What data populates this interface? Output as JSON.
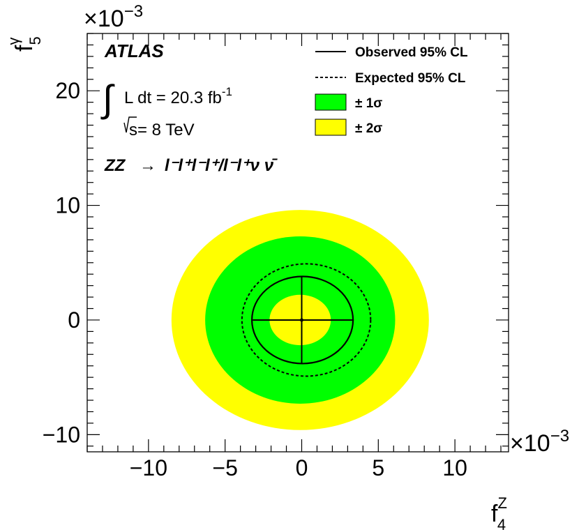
{
  "chart_data": {
    "type": "contour",
    "xlabel": "f",
    "xlabel_sup": "Z",
    "xlabel_sub": "4",
    "ylabel": "f",
    "ylabel_sup": "γ",
    "ylabel_sub": "5",
    "x_exponent_label": "×10",
    "x_exponent_power": "−3",
    "y_exponent_label": "×10",
    "y_exponent_power": "−3",
    "xlim": [
      -14,
      13.5
    ],
    "ylim": [
      -11.5,
      25
    ],
    "x_ticks": [
      -10,
      -5,
      0,
      5,
      10
    ],
    "x_tick_labels": [
      "−10",
      "−5",
      "0",
      "5",
      "10"
    ],
    "y_ticks": [
      -10,
      0,
      10,
      20
    ],
    "y_tick_labels": [
      "−10",
      "0",
      "10",
      "20"
    ],
    "best_fit": [
      0,
      0
    ],
    "observed_cross": {
      "x": [
        -3.2,
        3.4
      ],
      "y": [
        -3.8,
        3.8
      ]
    },
    "contours": {
      "band_2sigma_outer": {
        "cx": -0.1,
        "cy": 0,
        "rx": 8.4,
        "ry": 9.6,
        "color": "#ffff00"
      },
      "band_1sigma_outer": {
        "cx": -0.1,
        "cy": 0,
        "rx": 6.2,
        "ry": 7.3,
        "color": "#00ff00"
      },
      "expected": {
        "cx": 0.3,
        "cy": 0,
        "rx": 4.2,
        "ry": 4.9,
        "style": "dashed"
      },
      "observed": {
        "cx": 0.05,
        "cy": 0,
        "rx": 3.3,
        "ry": 3.8,
        "style": "solid"
      },
      "band_1sigma_inner": {
        "cx": -0.1,
        "cy": 0,
        "rx": 2.0,
        "ry": 2.2,
        "color": "#ffff00"
      }
    },
    "annotations": {
      "experiment": "ATLAS",
      "lumi_prefix": "L dt = 20.3 fb",
      "lumi_sup": "-1",
      "energy_prefix": "s",
      "energy_value": "= 8 TeV",
      "process_prefix": "ZZ",
      "process_arrow": "→",
      "process_decay": "l⁻l⁺l⁻l⁺/l⁻l⁺ν  ν̄"
    },
    "legend": {
      "placement": "top-right",
      "entries": [
        {
          "label": "Observed 95% CL",
          "style": "solid-line"
        },
        {
          "label": "Expected 95% CL",
          "style": "dashed-line"
        },
        {
          "label": "± 1σ",
          "style": "fill",
          "color": "#00ff00"
        },
        {
          "label": "± 2σ",
          "style": "fill",
          "color": "#ffff00"
        }
      ]
    }
  }
}
